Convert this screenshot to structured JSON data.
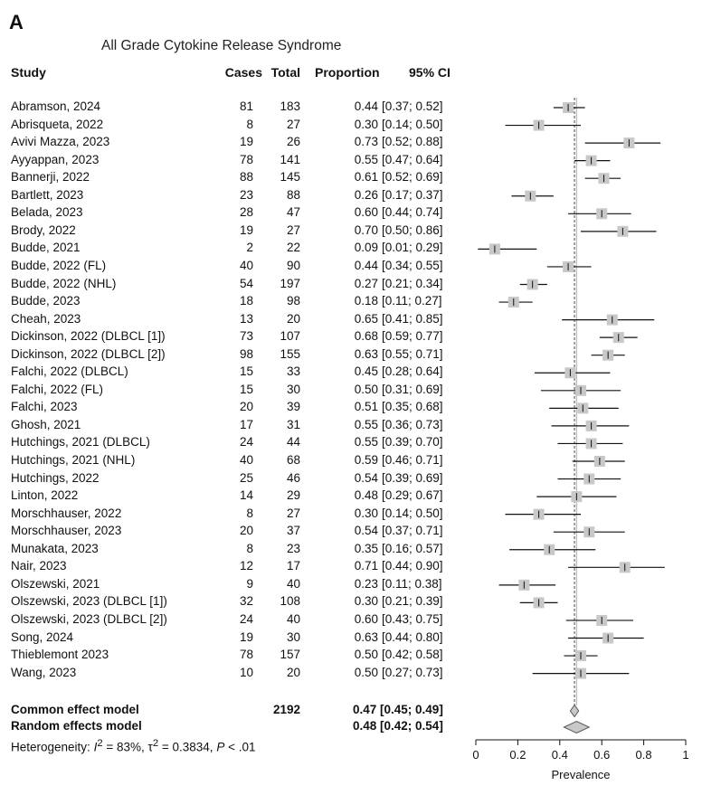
{
  "panel_letter": "A",
  "columns": {
    "study": "Study",
    "cases": "Cases",
    "total": "Total",
    "proportion": "Proportion",
    "ci": "95% CI"
  },
  "heterogeneity": {
    "prefix": "Heterogeneity: ",
    "i2_symbol": "I",
    "i2_value": " = 83%, ",
    "tau2_symbol": "τ",
    "tau2_value": " = 0.3834, ",
    "p_symbol": "P",
    "p_value": " < .01"
  },
  "colors": {
    "square": "#c8c8c8",
    "line": "#111111",
    "diamond_fill": "#c8c8c8",
    "dashed_line": "#666666"
  },
  "chart_data": {
    "type": "forest",
    "title": "All Grade Cytokine Release Syndrome",
    "xlabel": "Prevalence",
    "xlim": [
      0,
      1
    ],
    "xticks": [
      0,
      0.2,
      0.4,
      0.6,
      0.8,
      1
    ],
    "xtick_labels": [
      "0",
      "0.2",
      "0.4",
      "0.6",
      "0.8",
      "1"
    ],
    "reference_line": 0.47,
    "studies": [
      {
        "study": "Abramson, 2024",
        "cases": "81",
        "total": "183",
        "est": 0.44,
        "lo": 0.37,
        "hi": 0.52,
        "prop": "0.44",
        "ci": "[0.37; 0.52]"
      },
      {
        "study": "Abrisqueta, 2022",
        "cases": "8",
        "total": "27",
        "est": 0.3,
        "lo": 0.14,
        "hi": 0.5,
        "prop": "0.30",
        "ci": "[0.14; 0.50]"
      },
      {
        "study": "Avivi Mazza, 2023",
        "cases": "19",
        "total": "26",
        "est": 0.73,
        "lo": 0.52,
        "hi": 0.88,
        "prop": "0.73",
        "ci": "[0.52; 0.88]"
      },
      {
        "study": "Ayyappan, 2023",
        "cases": "78",
        "total": "141",
        "est": 0.55,
        "lo": 0.47,
        "hi": 0.64,
        "prop": "0.55",
        "ci": "[0.47; 0.64]"
      },
      {
        "study": "Bannerji, 2022",
        "cases": "88",
        "total": "145",
        "est": 0.61,
        "lo": 0.52,
        "hi": 0.69,
        "prop": "0.61",
        "ci": "[0.52; 0.69]"
      },
      {
        "study": "Bartlett, 2023",
        "cases": "23",
        "total": "88",
        "est": 0.26,
        "lo": 0.17,
        "hi": 0.37,
        "prop": "0.26",
        "ci": "[0.17; 0.37]"
      },
      {
        "study": "Belada, 2023",
        "cases": "28",
        "total": "47",
        "est": 0.6,
        "lo": 0.44,
        "hi": 0.74,
        "prop": "0.60",
        "ci": "[0.44; 0.74]"
      },
      {
        "study": "Brody, 2022",
        "cases": "19",
        "total": "27",
        "est": 0.7,
        "lo": 0.5,
        "hi": 0.86,
        "prop": "0.70",
        "ci": "[0.50; 0.86]"
      },
      {
        "study": "Budde, 2021",
        "cases": "2",
        "total": "22",
        "est": 0.09,
        "lo": 0.01,
        "hi": 0.29,
        "prop": "0.09",
        "ci": "[0.01; 0.29]"
      },
      {
        "study": "Budde, 2022 (FL)",
        "cases": "40",
        "total": "90",
        "est": 0.44,
        "lo": 0.34,
        "hi": 0.55,
        "prop": "0.44",
        "ci": "[0.34; 0.55]"
      },
      {
        "study": "Budde, 2022 (NHL)",
        "cases": "54",
        "total": "197",
        "est": 0.27,
        "lo": 0.21,
        "hi": 0.34,
        "prop": "0.27",
        "ci": "[0.21; 0.34]"
      },
      {
        "study": "Budde, 2023",
        "cases": "18",
        "total": "98",
        "est": 0.18,
        "lo": 0.11,
        "hi": 0.27,
        "prop": "0.18",
        "ci": "[0.11; 0.27]"
      },
      {
        "study": "Cheah, 2023",
        "cases": "13",
        "total": "20",
        "est": 0.65,
        "lo": 0.41,
        "hi": 0.85,
        "prop": "0.65",
        "ci": "[0.41; 0.85]"
      },
      {
        "study": "Dickinson, 2022 (DLBCL [1])",
        "cases": "73",
        "total": "107",
        "est": 0.68,
        "lo": 0.59,
        "hi": 0.77,
        "prop": "0.68",
        "ci": "[0.59; 0.77]"
      },
      {
        "study": "Dickinson, 2022 (DLBCL [2])",
        "cases": "98",
        "total": "155",
        "est": 0.63,
        "lo": 0.55,
        "hi": 0.71,
        "prop": "0.63",
        "ci": "[0.55; 0.71]"
      },
      {
        "study": "Falchi, 2022 (DLBCL)",
        "cases": "15",
        "total": "33",
        "est": 0.45,
        "lo": 0.28,
        "hi": 0.64,
        "prop": "0.45",
        "ci": "[0.28; 0.64]"
      },
      {
        "study": "Falchi, 2022 (FL)",
        "cases": "15",
        "total": "30",
        "est": 0.5,
        "lo": 0.31,
        "hi": 0.69,
        "prop": "0.50",
        "ci": "[0.31; 0.69]"
      },
      {
        "study": "Falchi, 2023",
        "cases": "20",
        "total": "39",
        "est": 0.51,
        "lo": 0.35,
        "hi": 0.68,
        "prop": "0.51",
        "ci": "[0.35; 0.68]"
      },
      {
        "study": "Ghosh, 2021",
        "cases": "17",
        "total": "31",
        "est": 0.55,
        "lo": 0.36,
        "hi": 0.73,
        "prop": "0.55",
        "ci": "[0.36; 0.73]"
      },
      {
        "study": "Hutchings, 2021 (DLBCL)",
        "cases": "24",
        "total": "44",
        "est": 0.55,
        "lo": 0.39,
        "hi": 0.7,
        "prop": "0.55",
        "ci": "[0.39; 0.70]"
      },
      {
        "study": "Hutchings, 2021 (NHL)",
        "cases": "40",
        "total": "68",
        "est": 0.59,
        "lo": 0.46,
        "hi": 0.71,
        "prop": "0.59",
        "ci": "[0.46; 0.71]"
      },
      {
        "study": "Hutchings, 2022",
        "cases": "25",
        "total": "46",
        "est": 0.54,
        "lo": 0.39,
        "hi": 0.69,
        "prop": "0.54",
        "ci": "[0.39; 0.69]"
      },
      {
        "study": "Linton, 2022",
        "cases": "14",
        "total": "29",
        "est": 0.48,
        "lo": 0.29,
        "hi": 0.67,
        "prop": "0.48",
        "ci": "[0.29; 0.67]"
      },
      {
        "study": "Morschhauser, 2022",
        "cases": "8",
        "total": "27",
        "est": 0.3,
        "lo": 0.14,
        "hi": 0.5,
        "prop": "0.30",
        "ci": "[0.14; 0.50]"
      },
      {
        "study": "Morschhauser, 2023",
        "cases": "20",
        "total": "37",
        "est": 0.54,
        "lo": 0.37,
        "hi": 0.71,
        "prop": "0.54",
        "ci": "[0.37; 0.71]"
      },
      {
        "study": "Munakata, 2023",
        "cases": "8",
        "total": "23",
        "est": 0.35,
        "lo": 0.16,
        "hi": 0.57,
        "prop": "0.35",
        "ci": "[0.16; 0.57]"
      },
      {
        "study": "Nair, 2023",
        "cases": "12",
        "total": "17",
        "est": 0.71,
        "lo": 0.44,
        "hi": 0.9,
        "prop": "0.71",
        "ci": "[0.44; 0.90]"
      },
      {
        "study": "Olszewski, 2021",
        "cases": "9",
        "total": "40",
        "est": 0.23,
        "lo": 0.11,
        "hi": 0.38,
        "prop": "0.23",
        "ci": "[0.11; 0.38]"
      },
      {
        "study": "Olszewski, 2023 (DLBCL [1])",
        "cases": "32",
        "total": "108",
        "est": 0.3,
        "lo": 0.21,
        "hi": 0.39,
        "prop": "0.30",
        "ci": "[0.21; 0.39]"
      },
      {
        "study": "Olszewski, 2023 (DLBCL [2])",
        "cases": "24",
        "total": "40",
        "est": 0.6,
        "lo": 0.43,
        "hi": 0.75,
        "prop": "0.60",
        "ci": "[0.43; 0.75]"
      },
      {
        "study": "Song, 2024",
        "cases": "19",
        "total": "30",
        "est": 0.63,
        "lo": 0.44,
        "hi": 0.8,
        "prop": "0.63",
        "ci": "[0.44; 0.80]"
      },
      {
        "study": "Thieblemont 2023",
        "cases": "78",
        "total": "157",
        "est": 0.5,
        "lo": 0.42,
        "hi": 0.58,
        "prop": "0.50",
        "ci": "[0.42; 0.58]"
      },
      {
        "study": "Wang, 2023",
        "cases": "10",
        "total": "20",
        "est": 0.5,
        "lo": 0.27,
        "hi": 0.73,
        "prop": "0.50",
        "ci": "[0.27; 0.73]"
      }
    ],
    "summaries": [
      {
        "label": "Common effect model",
        "total": "2192",
        "est": 0.47,
        "lo": 0.45,
        "hi": 0.49,
        "text": "0.47 [0.45; 0.49]"
      },
      {
        "label": "Random effects model",
        "total": "",
        "est": 0.48,
        "lo": 0.42,
        "hi": 0.54,
        "text": "0.48 [0.42; 0.54]"
      }
    ]
  }
}
